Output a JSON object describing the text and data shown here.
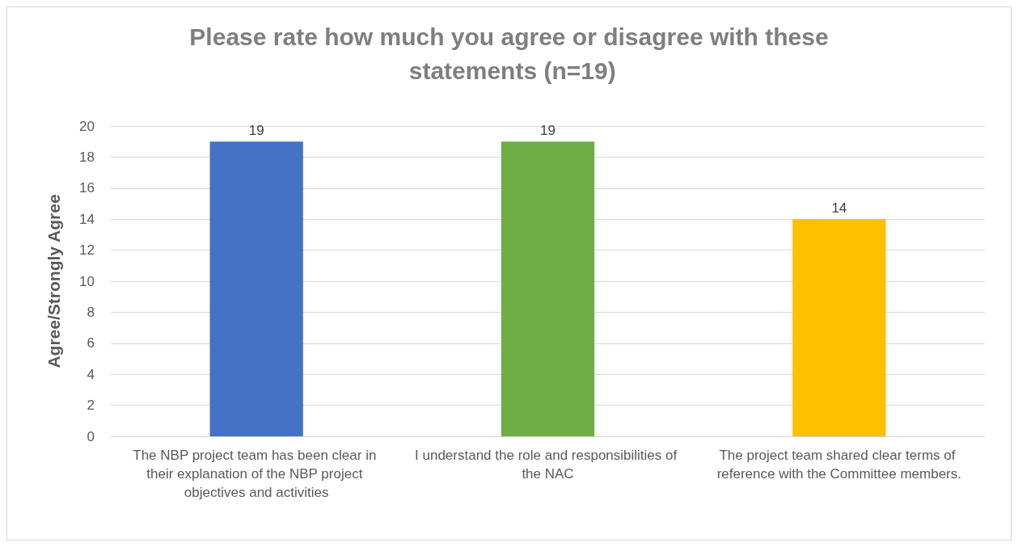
{
  "chart_data": {
    "type": "bar",
    "title": "Please rate how much you agree or disagree with these statements (n=19)",
    "ylabel": "Agree/Strongly Agree",
    "categories": [
      "The NBP project team has been clear in their explanation of the NBP project objectives and activities",
      "I understand the role and responsibilities of the NAC",
      "The project team shared clear terms of reference with the Committee members."
    ],
    "values": [
      19,
      19,
      14
    ],
    "colors": [
      "#4472c4",
      "#70ad47",
      "#ffc000"
    ],
    "ylim": [
      0,
      20
    ],
    "yticks": [
      0,
      2,
      4,
      6,
      8,
      10,
      12,
      14,
      16,
      18,
      20
    ],
    "grid": "y",
    "data_labels": true
  }
}
